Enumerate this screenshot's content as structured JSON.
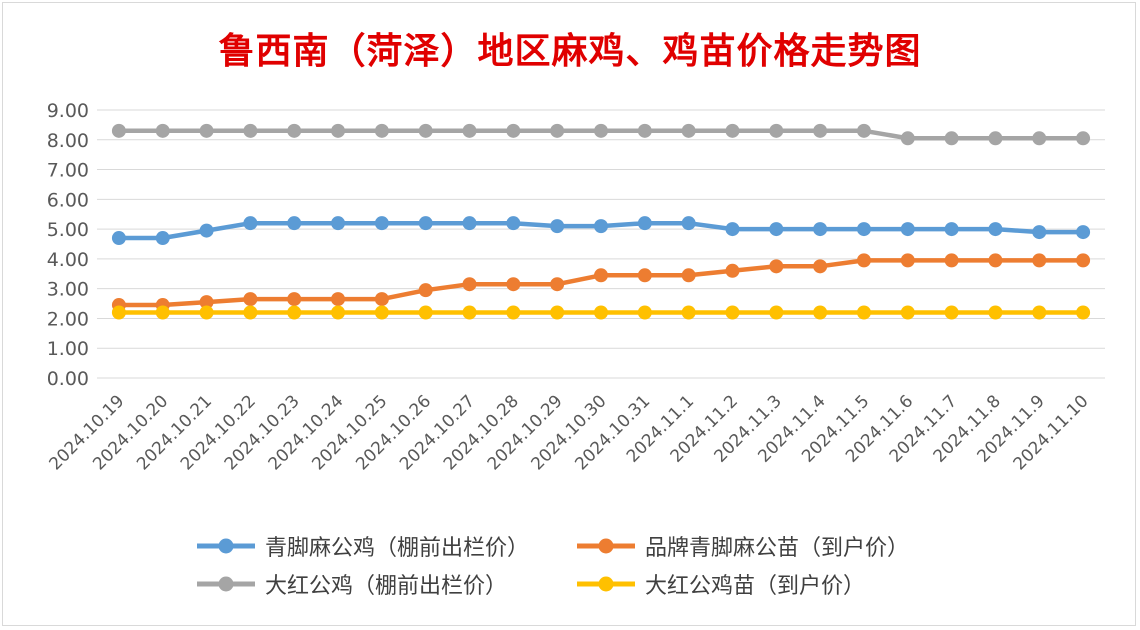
{
  "chart_data": {
    "type": "line",
    "title": "鲁西南（菏泽）地区麻鸡、鸡苗价格走势图",
    "xlabel": "",
    "ylabel": "",
    "ylim": [
      0,
      9
    ],
    "yticks": [
      "0.00",
      "1.00",
      "2.00",
      "3.00",
      "4.00",
      "5.00",
      "6.00",
      "7.00",
      "8.00",
      "9.00"
    ],
    "grid": true,
    "legend_position": "bottom",
    "x": [
      "2024.10.19",
      "2024.10.20",
      "2024.10.21",
      "2024.10.22",
      "2024.10.23",
      "2024.10.24",
      "2024.10.25",
      "2024.10.26",
      "2024.10.27",
      "2024.10.28",
      "2024.10.29",
      "2024.10.30",
      "2024.10.31",
      "2024.11.1",
      "2024.11.2",
      "2024.11.3",
      "2024.11.4",
      "2024.11.5",
      "2024.11.6",
      "2024.11.7",
      "2024.11.8",
      "2024.11.9",
      "2024.11.10"
    ],
    "series": [
      {
        "name": "青脚麻公鸡（棚前出栏价）",
        "color": "#5b9bd5",
        "values": [
          4.7,
          4.7,
          4.95,
          5.2,
          5.2,
          5.2,
          5.2,
          5.2,
          5.2,
          5.2,
          5.1,
          5.1,
          5.2,
          5.2,
          5.0,
          5.0,
          5.0,
          5.0,
          5.0,
          5.0,
          5.0,
          4.9,
          4.9
        ]
      },
      {
        "name": "品牌青脚麻公苗（到户价）",
        "color": "#ed7d31",
        "values": [
          2.45,
          2.45,
          2.55,
          2.65,
          2.65,
          2.65,
          2.65,
          2.95,
          3.15,
          3.15,
          3.15,
          3.45,
          3.45,
          3.45,
          3.6,
          3.75,
          3.75,
          3.95,
          3.95,
          3.95,
          3.95,
          3.95,
          3.95
        ]
      },
      {
        "name": "大红公鸡（棚前出栏价）",
        "color": "#a5a5a5",
        "values": [
          8.3,
          8.3,
          8.3,
          8.3,
          8.3,
          8.3,
          8.3,
          8.3,
          8.3,
          8.3,
          8.3,
          8.3,
          8.3,
          8.3,
          8.3,
          8.3,
          8.3,
          8.3,
          8.05,
          8.05,
          8.05,
          8.05,
          8.05
        ]
      },
      {
        "name": "大红公鸡苗（到户价）",
        "color": "#ffc000",
        "values": [
          2.2,
          2.2,
          2.2,
          2.2,
          2.2,
          2.2,
          2.2,
          2.2,
          2.2,
          2.2,
          2.2,
          2.2,
          2.2,
          2.2,
          2.2,
          2.2,
          2.2,
          2.2,
          2.2,
          2.2,
          2.2,
          2.2,
          2.2
        ]
      }
    ]
  }
}
